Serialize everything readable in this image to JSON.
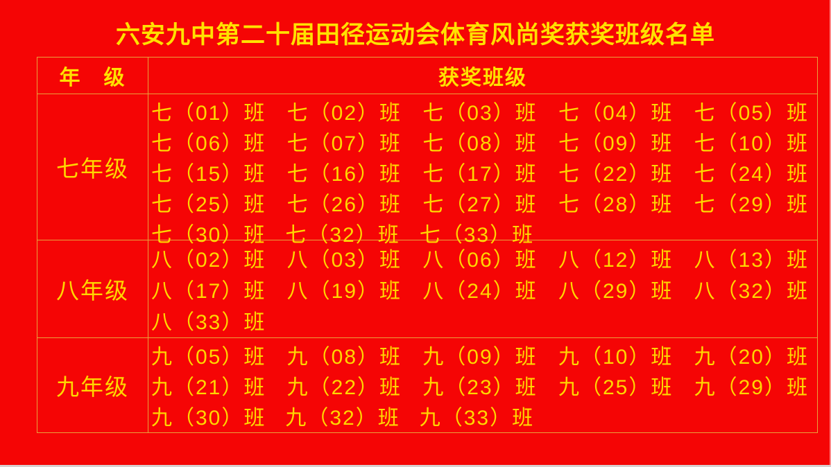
{
  "page": {
    "colors": {
      "background": "#f50505",
      "text_gold": "#ffd700",
      "title_yellow": "#ffe100",
      "table_border": "#e9a23c"
    }
  },
  "title": "六安九中第二十届田径运动会体育风尚奖获奖班级名单",
  "table": {
    "headers": {
      "grade": "年　级",
      "classes": "获奖班级"
    },
    "rows": [
      {
        "grade": "七年级",
        "lines": [
          [
            "七（01）班",
            "七（02）班",
            "七（03）班",
            "七（04）班",
            "七（05）班"
          ],
          [
            "七（06）班",
            "七（07）班",
            "七（08）班",
            "七（09）班",
            "七（10）班"
          ],
          [
            "七（15）班",
            "七（16）班",
            "七（17）班",
            "七（22）班",
            "七（24）班"
          ],
          [
            "七（25）班",
            "七（26）班",
            "七（27）班",
            "七（28）班",
            "七（29）班"
          ],
          [
            "七（30）班",
            "七（32）班",
            "七（33）班"
          ]
        ]
      },
      {
        "grade": "八年级",
        "lines": [
          [
            "八（02）班",
            "八（03）班",
            "八（06）班",
            "八（12）班",
            "八（13）班"
          ],
          [
            "八（17）班",
            "八（19）班",
            "八（24）班",
            "八（29）班",
            "八（32）班"
          ],
          [
            "八（33）班"
          ]
        ]
      },
      {
        "grade": "九年级",
        "lines": [
          [
            "九（05）班",
            "九（08）班",
            "九（09）班",
            "九（10）班",
            "九（20）班"
          ],
          [
            "九（21）班",
            "九（22）班",
            "九（23）班",
            "九（25）班",
            "九（29）班"
          ],
          [
            "九（30）班",
            "九（32）班",
            "九（33）班"
          ]
        ]
      }
    ]
  }
}
